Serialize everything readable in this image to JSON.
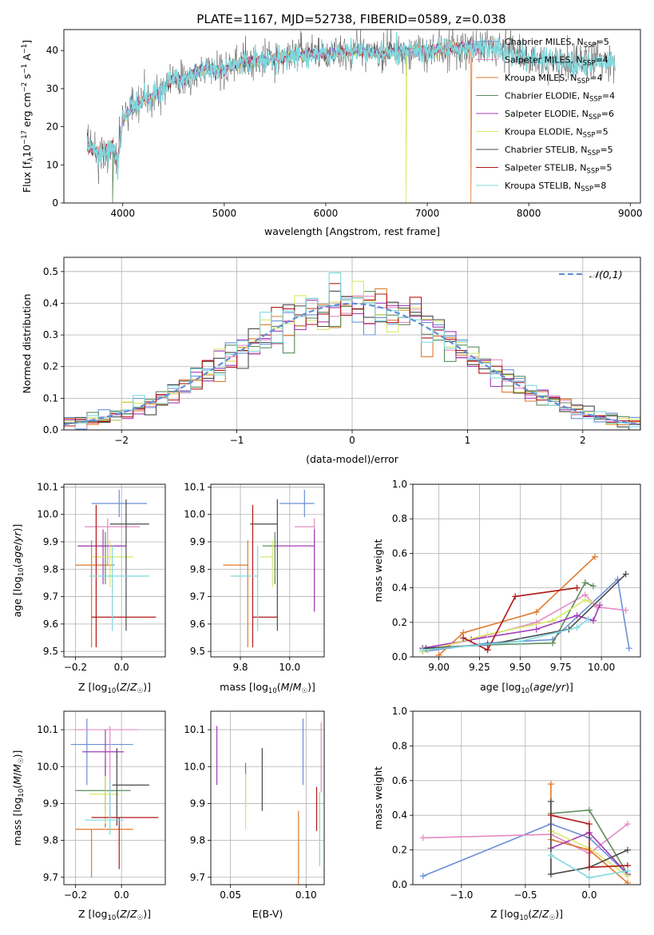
{
  "figure": {
    "title": "PLATE=1167, MJD=52738, FIBERID=0589, z=0.038"
  },
  "models": [
    {
      "name": "Chabrier MILES",
      "nssp": "5",
      "color": "#6a8fd8"
    },
    {
      "name": "Salpeter MILES",
      "nssp": "4",
      "color": "#e58ac4"
    },
    {
      "name": "Kroupa MILES",
      "nssp": "4",
      "color": "#e0782c"
    },
    {
      "name": "Chabrier ELODIE",
      "nssp": "4",
      "color": "#5c8c5c"
    },
    {
      "name": "Salpeter ELODIE",
      "nssp": "6",
      "color": "#a33bb8"
    },
    {
      "name": "Kroupa ELODIE",
      "nssp": "5",
      "color": "#d7e86a"
    },
    {
      "name": "Chabrier STELIB",
      "nssp": "5",
      "color": "#4a4a4a"
    },
    {
      "name": "Salpeter STELIB",
      "nssp": "5",
      "color": "#b01818"
    },
    {
      "name": "Kroupa STELIB",
      "nssp": "8",
      "color": "#7fd9df"
    }
  ],
  "chart_data": [
    {
      "id": "spectrum",
      "type": "line",
      "xlabel": "wavelength [Angstrom, rest frame]",
      "ylabel": "Flux [f_λ 10^-17 erg cm^-2 s^-1 A^-1]",
      "xlim": [
        3420,
        9100
      ],
      "ylim": [
        0,
        45.5
      ],
      "xticks": [
        4000,
        5000,
        6000,
        7000,
        8000,
        9000
      ],
      "yticks": [
        0,
        10,
        20,
        30,
        40
      ],
      "continuum": {
        "x": [
          3650,
          3700,
          3800,
          3900,
          3950,
          4000,
          4100,
          4200,
          4300,
          4400,
          4500,
          4600,
          4700,
          4800,
          5000,
          5200,
          5500,
          5800,
          6000,
          6300,
          6500,
          6700,
          7000,
          7300,
          7500,
          7600,
          8000,
          8400,
          8800
        ],
        "y": [
          16,
          14,
          13,
          15,
          10,
          22,
          25,
          27,
          28,
          30,
          33,
          32,
          34,
          35,
          35,
          37,
          38,
          39,
          39,
          40,
          39,
          40,
          40,
          41,
          41,
          41,
          38,
          37,
          37
        ]
      },
      "legend": "top-right",
      "grid": false
    },
    {
      "id": "residuals",
      "type": "step",
      "xlabel": "(data-model)/error",
      "ylabel": "Normed distribution",
      "xlim": [
        -2.5,
        2.5
      ],
      "ylim": [
        0,
        0.545
      ],
      "xticks": [
        -2,
        -1,
        0,
        1,
        2
      ],
      "yticks": [
        0.0,
        0.1,
        0.2,
        0.3,
        0.4,
        0.5
      ],
      "bin_width": 0.1,
      "reference_label": "𝒩(0,1)",
      "reference_color": "#6090d8",
      "legend": "top-right",
      "grid": true
    },
    {
      "id": "age_vs_Z",
      "type": "errorbar",
      "xlabel": "Z [log10(Z/Z☉)]",
      "ylabel": "age  [log10(age/yr)]",
      "xlim": [
        -0.25,
        0.19
      ],
      "ylim": [
        9.48,
        10.11
      ],
      "xticks": [
        -0.2,
        0.0
      ],
      "xticklabels": [
        "−0.2",
        "0.0"
      ],
      "yticks": [
        9.5,
        9.6,
        9.7,
        9.8,
        9.9,
        10.0,
        10.1
      ],
      "points": [
        {
          "x": -0.01,
          "xerr": [
            0.12,
            0.12
          ],
          "y": 10.04,
          "yerr": [
            0.05,
            0.05
          ]
        },
        {
          "x": -0.06,
          "xerr": [
            0.1,
            0.14
          ],
          "y": 9.955,
          "yerr": [
            0.14,
            0.03
          ]
        },
        {
          "x": -0.13,
          "xerr": [
            0.07,
            0.1
          ],
          "y": 9.815,
          "yerr": [
            0.3,
            0.09
          ]
        },
        {
          "x": -0.07,
          "xerr": [
            0.12,
            0.09
          ],
          "y": 9.885,
          "yerr": [
            0.14,
            0.05
          ]
        },
        {
          "x": -0.08,
          "xerr": [
            0.11,
            0.1
          ],
          "y": 9.885,
          "yerr": [
            0.14,
            0.06
          ]
        },
        {
          "x": -0.05,
          "xerr": [
            0.08,
            0.1
          ],
          "y": 9.845,
          "yerr": [
            0.11,
            0.06
          ]
        },
        {
          "x": 0.02,
          "xerr": [
            0.07,
            0.1
          ],
          "y": 9.965,
          "yerr": [
            0.39,
            0.09
          ]
        },
        {
          "x": -0.11,
          "xerr": [
            0.02,
            0.26
          ],
          "y": 9.625,
          "yerr": [
            0.11,
            0.41
          ]
        },
        {
          "x": -0.04,
          "xerr": [
            0.1,
            0.16
          ],
          "y": 9.775,
          "yerr": [
            0.2,
            0.11
          ]
        }
      ],
      "grid": true
    },
    {
      "id": "age_vs_mass",
      "type": "errorbar",
      "xlabel": "mass [log10(M/M☉)]",
      "ylabel": "",
      "xlim": [
        9.68,
        10.14
      ],
      "ylim": [
        9.48,
        10.11
      ],
      "xticks": [
        9.8,
        10.0
      ],
      "xticklabels": [
        "9.8",
        "10.0"
      ],
      "yticks": [
        9.5,
        9.6,
        9.7,
        9.8,
        9.9,
        10.0,
        10.1
      ],
      "points": [
        {
          "x": 10.06,
          "xerr": [
            0.1,
            0.04
          ],
          "y": 10.04,
          "yerr": [
            0.05,
            0.05
          ]
        },
        {
          "x": 10.1,
          "xerr": [
            0.08,
            0.0
          ],
          "y": 9.955,
          "yerr": [
            0.31,
            0.03
          ]
        },
        {
          "x": 9.83,
          "xerr": [
            0.1,
            0.0
          ],
          "y": 9.815,
          "yerr": [
            0.3,
            0.09
          ]
        },
        {
          "x": 9.94,
          "xerr": [
            0.05,
            0.0
          ],
          "y": 9.885,
          "yerr": [
            0.14,
            0.05
          ]
        },
        {
          "x": 10.1,
          "xerr": [
            0.16,
            0.0
          ],
          "y": 9.885,
          "yerr": [
            0.24,
            0.06
          ]
        },
        {
          "x": 9.93,
          "xerr": [
            0.05,
            0.0
          ],
          "y": 9.845,
          "yerr": [
            0.11,
            0.06
          ]
        },
        {
          "x": 9.95,
          "xerr": [
            0.11,
            0.0
          ],
          "y": 9.965,
          "yerr": [
            0.39,
            0.09
          ]
        },
        {
          "x": 9.85,
          "xerr": [
            0.0,
            0.1
          ],
          "y": 9.625,
          "yerr": [
            0.11,
            0.41
          ]
        },
        {
          "x": 9.87,
          "xerr": [
            0.11,
            0.0
          ],
          "y": 9.775,
          "yerr": [
            0.2,
            0.11
          ]
        }
      ],
      "grid": true
    },
    {
      "id": "massweight_vs_age",
      "type": "line-marker",
      "xlabel": "age  [log10(age/yr)]",
      "ylabel": "mass weight",
      "xlim": [
        8.84,
        10.24
      ],
      "ylim": [
        0,
        1
      ],
      "xticks": [
        9.0,
        9.25,
        9.5,
        9.75,
        10.0
      ],
      "xticklabels": [
        "9.00",
        "9.25",
        "9.50",
        "9.75",
        "10.00"
      ],
      "yticks": [
        0.0,
        0.2,
        0.4,
        0.6,
        0.8,
        1.0
      ],
      "series": [
        {
          "x": [
            8.9,
            9.3,
            9.7,
            10.1,
            10.17
          ],
          "y": [
            0.03,
            0.08,
            0.1,
            0.45,
            0.05
          ]
        },
        {
          "x": [
            8.93,
            9.2,
            9.6,
            9.9,
            9.97,
            10.15
          ],
          "y": [
            0.04,
            0.1,
            0.2,
            0.36,
            0.29,
            0.27
          ]
        },
        {
          "x": [
            9.0,
            9.15,
            9.6,
            9.96
          ],
          "y": [
            0.01,
            0.14,
            0.26,
            0.58
          ]
        },
        {
          "x": [
            8.9,
            9.3,
            9.7,
            9.9,
            9.95
          ],
          "y": [
            0.05,
            0.07,
            0.08,
            0.43,
            0.41
          ]
        },
        {
          "x": [
            8.9,
            9.2,
            9.6,
            9.85,
            9.95,
            9.99
          ],
          "y": [
            0.05,
            0.1,
            0.16,
            0.24,
            0.21,
            0.3
          ]
        },
        {
          "x": [
            8.9,
            9.3,
            9.7,
            9.9,
            9.93
          ],
          "y": [
            0.03,
            0.13,
            0.21,
            0.33,
            0.32
          ]
        },
        {
          "x": [
            8.92,
            9.3,
            9.8,
            10.15
          ],
          "y": [
            0.05,
            0.07,
            0.16,
            0.48
          ]
        },
        {
          "x": [
            9.15,
            9.3,
            9.47,
            9.85
          ],
          "y": [
            0.11,
            0.04,
            0.35,
            0.4
          ]
        },
        {
          "x": [
            8.9,
            9.5,
            9.85,
            9.92
          ],
          "y": [
            0.04,
            0.09,
            0.17,
            0.22
          ]
        }
      ],
      "grid": true
    },
    {
      "id": "mass_vs_Z",
      "type": "errorbar",
      "xlabel": "Z [log10(Z/Z☉)]",
      "ylabel": "mass [log10(M/M☉)]",
      "xlim": [
        -0.25,
        0.19
      ],
      "ylim": [
        9.68,
        10.15
      ],
      "xticks": [
        -0.2,
        0.0
      ],
      "xticklabels": [
        "−0.2",
        "0.0"
      ],
      "yticks": [
        9.7,
        9.8,
        9.9,
        10.0,
        10.1
      ],
      "points": [
        {
          "x": -0.15,
          "xerr": [
            0.07,
            0.2
          ],
          "y": 10.06,
          "yerr": [
            0.11,
            0.07
          ]
        },
        {
          "x": -0.05,
          "xerr": [
            0.15,
            0.12
          ],
          "y": 10.1,
          "yerr": [
            0.24,
            0.01
          ]
        },
        {
          "x": -0.13,
          "xerr": [
            0.07,
            0.18
          ],
          "y": 9.83,
          "yerr": [
            0.13,
            0.0
          ]
        },
        {
          "x": -0.07,
          "xerr": [
            0.13,
            0.11
          ],
          "y": 9.935,
          "yerr": [
            0.1,
            0.08
          ]
        },
        {
          "x": -0.07,
          "xerr": [
            0.1,
            0.08
          ],
          "y": 10.04,
          "yerr": [
            0.16,
            0.06
          ]
        },
        {
          "x": -0.07,
          "xerr": [
            0.07,
            0.06
          ],
          "y": 9.925,
          "yerr": [
            0.08,
            0.05
          ]
        },
        {
          "x": -0.02,
          "xerr": [
            0.02,
            0.14
          ],
          "y": 9.95,
          "yerr": [
            0.11,
            0.1
          ]
        },
        {
          "x": -0.01,
          "xerr": [
            0.12,
            0.17
          ],
          "y": 9.862,
          "yerr": [
            0.14,
            0.0
          ]
        },
        {
          "x": -0.05,
          "xerr": [
            0.11,
            0.06
          ],
          "y": 9.855,
          "yerr": [
            0.04,
            0.11
          ]
        }
      ],
      "grid": true
    },
    {
      "id": "mass_vs_EBV",
      "type": "errorbar",
      "xlabel": "E(B-V)",
      "ylabel": "",
      "xlim": [
        0.037,
        0.112
      ],
      "ylim": [
        9.68,
        10.15
      ],
      "xticks": [
        0.05,
        0.1
      ],
      "xticklabels": [
        "0.05",
        "0.10"
      ],
      "yticks": [
        9.7,
        9.8,
        9.9,
        10.0,
        10.1
      ],
      "points": [
        {
          "x": 0.098,
          "y": 10.04,
          "yerr": [
            0.09,
            0.09
          ]
        },
        {
          "x": 0.11,
          "y": 10.03,
          "yerr": [
            0.1,
            0.09
          ]
        },
        {
          "x": 0.095,
          "y": 9.79,
          "yerr": [
            0.11,
            0.09
          ]
        },
        {
          "x": 0.06,
          "y": 9.95,
          "yerr": [
            0.06,
            0.06
          ]
        },
        {
          "x": 0.041,
          "y": 10.03,
          "yerr": [
            0.08,
            0.08
          ]
        },
        {
          "x": 0.06,
          "y": 9.9,
          "yerr": [
            0.07,
            0.08
          ]
        },
        {
          "x": 0.071,
          "y": 9.97,
          "yerr": [
            0.09,
            0.08
          ]
        },
        {
          "x": 0.107,
          "y": 9.885,
          "yerr": [
            0.06,
            0.06
          ]
        },
        {
          "x": 0.109,
          "y": 9.83,
          "yerr": [
            0.1,
            0.1
          ]
        }
      ],
      "grid": true
    },
    {
      "id": "massweight_vs_Z",
      "type": "line-marker",
      "xlabel": "Z [log10(Z/Z☉)]",
      "ylabel": "mass weight",
      "xlim": [
        -1.38,
        0.4
      ],
      "ylim": [
        0,
        1
      ],
      "xticks": [
        -1.0,
        -0.5,
        0.0
      ],
      "xticklabels": [
        "−1.0",
        "−0.5",
        "0.0"
      ],
      "yticks": [
        0.0,
        0.2,
        0.4,
        0.6,
        0.8,
        1.0
      ],
      "series": [
        {
          "x": [
            -1.3,
            -0.3,
            0.0,
            0.3
          ],
          "y": [
            0.05,
            0.35,
            0.27,
            0.06
          ]
        },
        {
          "x": [
            -1.3,
            -0.3,
            0.0,
            0.3
          ],
          "y": [
            0.27,
            0.29,
            0.18,
            0.35
          ]
        },
        {
          "x": [
            -0.3,
            -0.3,
            0.0,
            0.3
          ],
          "y": [
            0.58,
            0.26,
            0.2,
            0.01
          ]
        },
        {
          "x": [
            -0.3,
            0.0,
            0.3
          ],
          "y": [
            0.41,
            0.43,
            0.06
          ]
        },
        {
          "x": [
            -0.3,
            0.0,
            0.3
          ],
          "y": [
            0.21,
            0.3,
            0.06
          ]
        },
        {
          "x": [
            -0.3,
            -0.3,
            0.0,
            0.3
          ],
          "y": [
            0.06,
            0.31,
            0.21,
            0.05
          ]
        },
        {
          "x": [
            -0.3,
            -0.3,
            0.0,
            0.3
          ],
          "y": [
            0.48,
            0.06,
            0.1,
            0.2
          ]
        },
        {
          "x": [
            -0.3,
            0.0,
            0.0,
            0.3
          ],
          "y": [
            0.4,
            0.35,
            0.1,
            0.11
          ]
        },
        {
          "x": [
            -0.3,
            0.0,
            0.3
          ],
          "y": [
            0.17,
            0.04,
            0.08
          ]
        }
      ],
      "grid": true
    }
  ]
}
